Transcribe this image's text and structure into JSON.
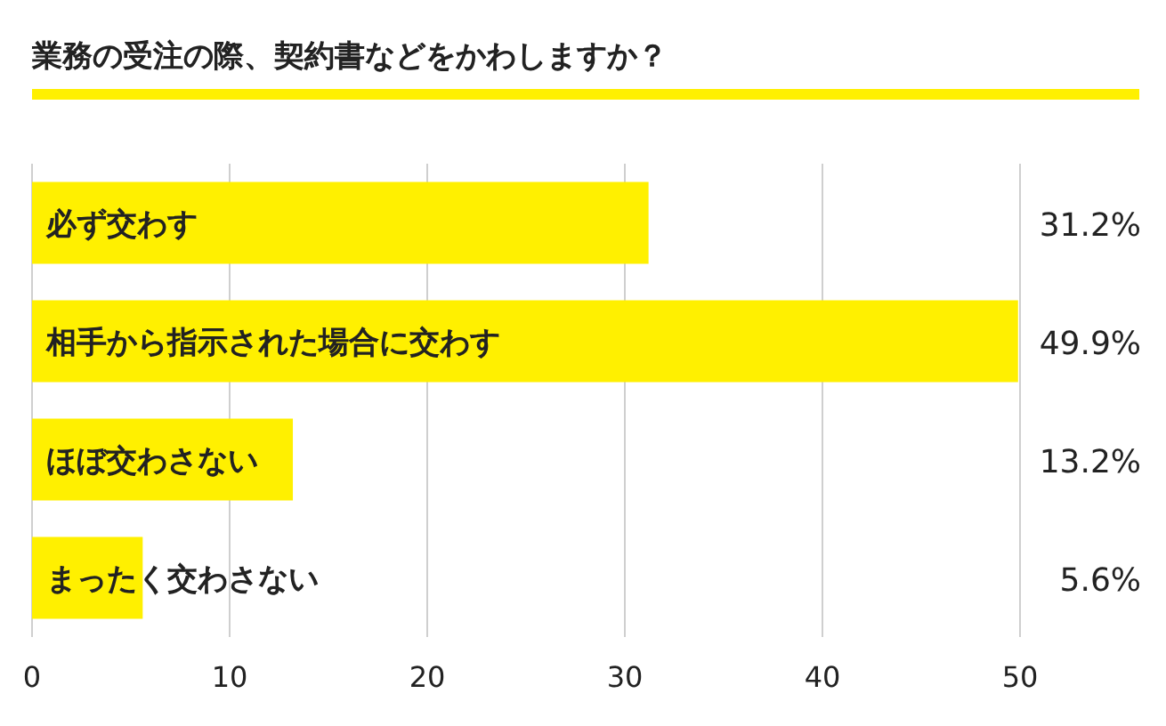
{
  "chart_data": {
    "type": "bar",
    "orientation": "horizontal",
    "title": "業務の受注の際、契約書などをかわしますか？",
    "categories": [
      "必ず交わす",
      "相手から指示された場合に交わす",
      "ほぼ交わさない",
      "まったく交わさない"
    ],
    "values": [
      31.2,
      49.9,
      13.2,
      5.6
    ],
    "value_labels": [
      "31.2%",
      "49.9%",
      "13.2%",
      "5.6%"
    ],
    "color": "#fff000",
    "xlim": [
      0,
      50
    ],
    "xticks": [
      0,
      10,
      20,
      30,
      40,
      50
    ],
    "grid": "x"
  }
}
